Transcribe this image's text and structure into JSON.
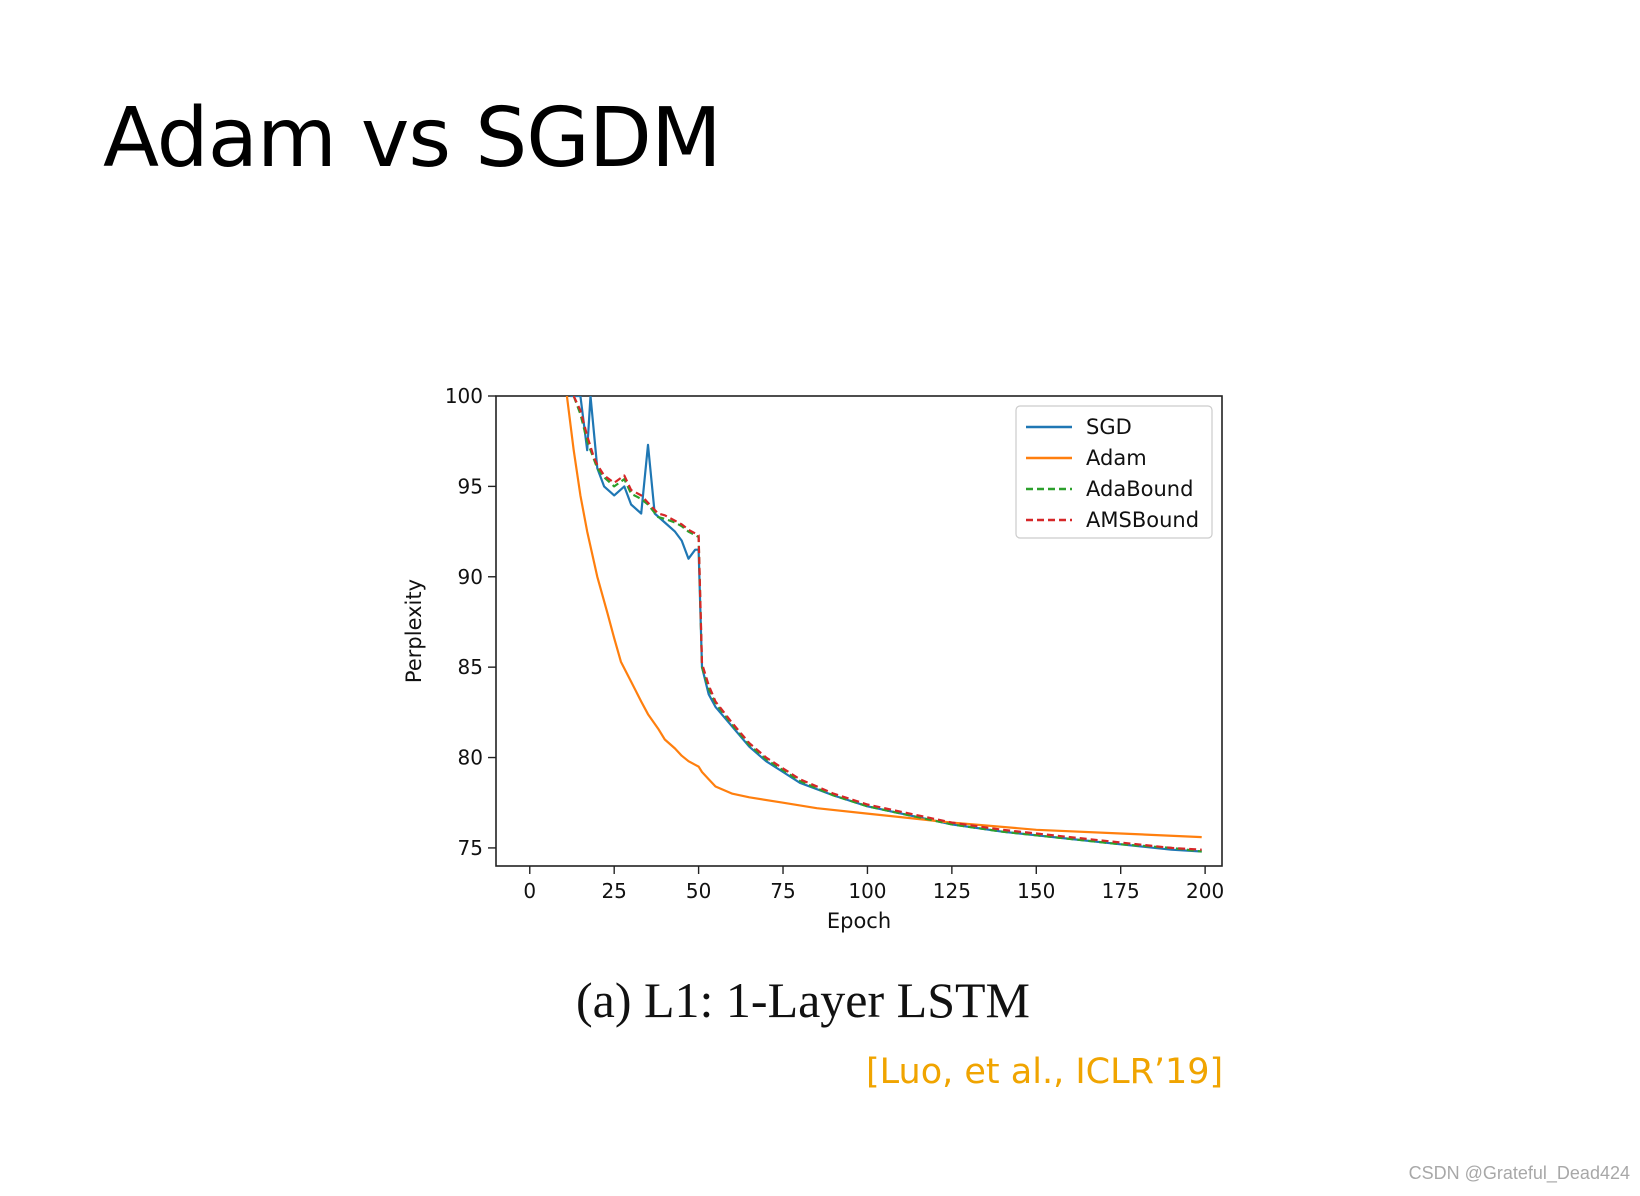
{
  "slide": {
    "title": "Adam vs SGDM",
    "caption": "(a) L1: 1-Layer LSTM",
    "citation": "[Luo, et al., ICLR’19]",
    "watermark": "CSDN @Grateful_Dead424"
  },
  "colors": {
    "citation": "#f0a400",
    "SGD": "#1f77b4",
    "Adam": "#ff7f0e",
    "AdaBound": "#2ca02c",
    "AMSBound": "#d62728"
  },
  "chart_data": {
    "type": "line",
    "title": "",
    "xlabel": "Epoch",
    "ylabel": "Perplexity",
    "xlim": [
      -10,
      205
    ],
    "ylim": [
      74,
      100
    ],
    "xticks": [
      0,
      25,
      50,
      75,
      100,
      125,
      150,
      175,
      200
    ],
    "yticks": [
      75,
      80,
      85,
      90,
      95,
      100
    ],
    "grid": false,
    "legend_position": "top-right",
    "series": [
      {
        "name": "SGD",
        "style": "solid",
        "x": [
          12,
          15,
          17,
          18,
          20,
          22,
          25,
          28,
          30,
          33,
          35,
          37,
          40,
          43,
          45,
          47,
          49,
          50,
          51,
          53,
          55,
          60,
          65,
          70,
          75,
          80,
          90,
          100,
          110,
          125,
          140,
          150,
          160,
          175,
          190,
          199
        ],
        "y": [
          100,
          100,
          97,
          100,
          96,
          95,
          94.5,
          95,
          94,
          93.5,
          97.3,
          93.5,
          93,
          92.5,
          92,
          91,
          91.5,
          91.5,
          85,
          83.5,
          82.8,
          81.7,
          80.6,
          79.8,
          79.2,
          78.6,
          77.9,
          77.3,
          76.9,
          76.3,
          75.9,
          75.7,
          75.5,
          75.2,
          74.9,
          74.8
        ]
      },
      {
        "name": "Adam",
        "style": "solid",
        "x": [
          11,
          13,
          15,
          17,
          20,
          23,
          25,
          27,
          30,
          33,
          35,
          38,
          40,
          43,
          45,
          47,
          49,
          50,
          51,
          53,
          55,
          60,
          65,
          75,
          85,
          100,
          125,
          150,
          175,
          199
        ],
        "y": [
          100,
          97,
          94.5,
          92.5,
          90,
          88,
          86.6,
          85.3,
          84.2,
          83.1,
          82.4,
          81.6,
          81.0,
          80.5,
          80.1,
          79.8,
          79.6,
          79.5,
          79.2,
          78.8,
          78.4,
          78.0,
          77.8,
          77.5,
          77.2,
          76.9,
          76.4,
          76.0,
          75.8,
          75.6
        ]
      },
      {
        "name": "AdaBound",
        "style": "dashed",
        "x": [
          13,
          15,
          17,
          19,
          20,
          22,
          25,
          28,
          30,
          33,
          35,
          38,
          40,
          43,
          45,
          47,
          49,
          50,
          51,
          53,
          55,
          60,
          65,
          70,
          75,
          80,
          90,
          100,
          110,
          125,
          140,
          150,
          160,
          175,
          190,
          199
        ],
        "y": [
          100,
          99,
          97.5,
          96.5,
          96,
          95.5,
          95,
          95.4,
          94.6,
          94.3,
          94,
          93.3,
          93.2,
          93,
          92.8,
          92.5,
          92.3,
          92.2,
          85,
          83.8,
          83,
          81.8,
          80.7,
          79.9,
          79.3,
          78.7,
          77.9,
          77.3,
          76.9,
          76.3,
          75.9,
          75.7,
          75.5,
          75.2,
          75.0,
          74.8
        ]
      },
      {
        "name": "AMSBound",
        "style": "dashed",
        "x": [
          13,
          15,
          17,
          19,
          20,
          22,
          25,
          28,
          30,
          33,
          35,
          38,
          40,
          43,
          45,
          47,
          49,
          50,
          51,
          53,
          55,
          60,
          65,
          70,
          75,
          80,
          90,
          100,
          110,
          125,
          140,
          150,
          160,
          175,
          190,
          199
        ],
        "y": [
          100,
          99.2,
          97.8,
          96.6,
          96.2,
          95.6,
          95.2,
          95.6,
          94.8,
          94.5,
          94.1,
          93.5,
          93.4,
          93.1,
          92.9,
          92.6,
          92.4,
          92.3,
          85.2,
          84,
          83.1,
          81.9,
          80.8,
          80.0,
          79.4,
          78.8,
          78.0,
          77.4,
          77.0,
          76.4,
          76.0,
          75.8,
          75.6,
          75.3,
          75.0,
          74.9
        ]
      }
    ]
  }
}
